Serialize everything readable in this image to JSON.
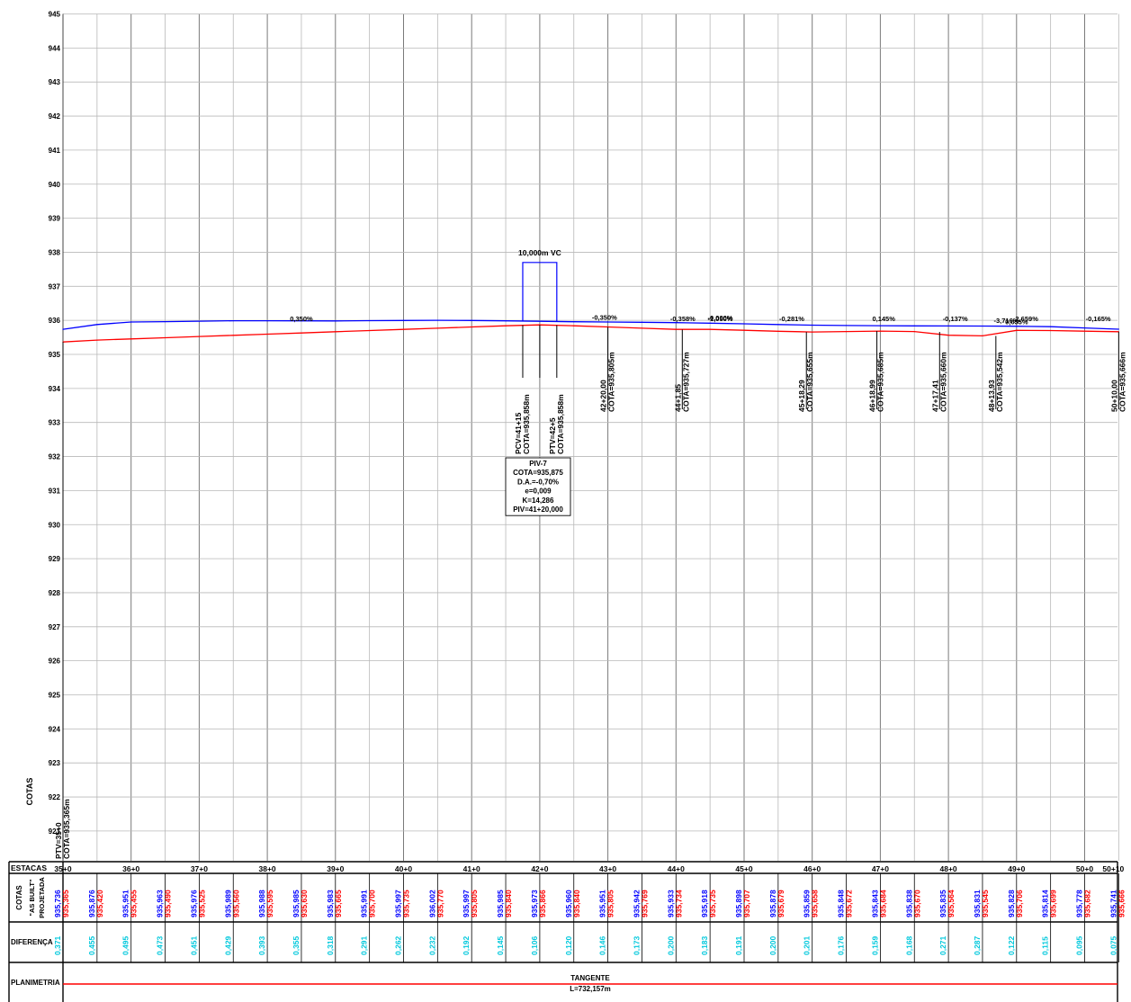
{
  "chart_data": {
    "type": "line",
    "title": "",
    "xlabel": "",
    "ylabel": "COTAS",
    "ylim": [
      920,
      945
    ],
    "yticks": [
      921,
      922,
      923,
      924,
      925,
      926,
      927,
      928,
      929,
      930,
      931,
      932,
      933,
      934,
      935,
      936,
      937,
      938,
      939,
      940,
      941,
      942,
      943,
      944,
      945
    ],
    "station_axis": {
      "start": 700,
      "end": 1010,
      "major_step": 20,
      "minor_step": 10
    },
    "grid": true,
    "colors": {
      "projected": "#0000ff",
      "as_built": "#ff0000",
      "difference": "#00c8dc",
      "planimetry": "#ff0000"
    },
    "series": [
      {
        "name": "PROJETADA",
        "color": "#0000ff",
        "x": [
          700,
          710,
          720,
          730,
          740,
          750,
          760,
          770,
          780,
          790,
          800,
          810,
          820,
          830,
          840,
          850,
          860,
          870,
          880,
          890,
          900,
          910,
          920,
          930,
          940,
          950,
          960,
          970,
          980,
          990,
          1000,
          1010
        ],
        "y": [
          935.736,
          935.876,
          935.951,
          935.963,
          935.976,
          935.989,
          935.988,
          935.985,
          935.983,
          935.991,
          935.997,
          936.002,
          935.997,
          935.985,
          935.973,
          935.96,
          935.951,
          935.942,
          935.933,
          935.918,
          935.898,
          935.878,
          935.859,
          935.848,
          935.843,
          935.838,
          935.835,
          935.831,
          935.828,
          935.814,
          935.778,
          935.741
        ]
      },
      {
        "name": "AS BUILT",
        "color": "#ff0000",
        "x": [
          700,
          710,
          720,
          730,
          740,
          750,
          760,
          770,
          780,
          790,
          800,
          810,
          820,
          830,
          840,
          850,
          860,
          870,
          880,
          890,
          900,
          910,
          920,
          930,
          940,
          950,
          960,
          970,
          980,
          990,
          1000,
          1010
        ],
        "y": [
          935.365,
          935.42,
          935.455,
          935.49,
          935.525,
          935.56,
          935.595,
          935.63,
          935.665,
          935.7,
          935.735,
          935.77,
          935.805,
          935.84,
          935.866,
          935.84,
          935.805,
          935.769,
          935.734,
          935.735,
          935.707,
          935.679,
          935.658,
          935.672,
          935.684,
          935.67,
          935.564,
          935.545,
          935.706,
          935.699,
          935.682,
          935.666
        ]
      }
    ],
    "grade_labels": [
      {
        "text": "0,350%",
        "x": 770,
        "y": 935.98
      },
      {
        "text": "-0,350%",
        "x": 859,
        "y": 936.02
      },
      {
        "text": "-0,358%",
        "x": 882,
        "y": 935.98
      },
      {
        "text": "-1,050%",
        "x": 893,
        "y": 935.98
      },
      {
        "text": "-0,000%",
        "x": 893,
        "y": 936.01
      },
      {
        "text": "-0,281%",
        "x": 914,
        "y": 935.98
      },
      {
        "text": "0,145%",
        "x": 941,
        "y": 935.98
      },
      {
        "text": "-0,137%",
        "x": 962,
        "y": 935.98
      },
      {
        "text": "-3,716%",
        "x": 977,
        "y": 935.92
      },
      {
        "text": "0,055%",
        "x": 980,
        "y": 935.88
      },
      {
        "text": "2,659%",
        "x": 983,
        "y": 935.98
      },
      {
        "text": "-0,165%",
        "x": 1004,
        "y": 935.98
      }
    ],
    "vertical_curve": {
      "length_label": "10,000m VC",
      "box_top": 937.7,
      "pcv": 835,
      "ptv": 845,
      "piv_box": [
        "PIV-7",
        "COTA=935,875",
        "D.A.=-0,70%",
        "e=0,009",
        "K=14,286",
        "PIV=41+20,000"
      ]
    },
    "station_markers": [
      {
        "x": 700,
        "station": "PTV=35+0",
        "cota": "COTA=935,365m",
        "y_top": 935.365
      },
      {
        "x": 835,
        "station": "PCV=41+15",
        "cota": "COTA=935,858m",
        "y_top": 935.858
      },
      {
        "x": 840,
        "station": "",
        "cota": "",
        "y_top": 935.866
      },
      {
        "x": 845,
        "station": "PTV=42+5",
        "cota": "COTA=935,858m",
        "y_top": 935.858
      },
      {
        "x": 860,
        "station": "42+20,00",
        "cota": "COTA=935,805m",
        "y_top": 935.805
      },
      {
        "x": 881.85,
        "station": "44+1,85",
        "cota": "COTA=935,727m",
        "y_top": 935.727
      },
      {
        "x": 918.29,
        "station": "45+18,29",
        "cota": "COTA=935,655m",
        "y_top": 935.655
      },
      {
        "x": 938.99,
        "station": "46+18,99",
        "cota": "COTA=935,685m",
        "y_top": 935.685
      },
      {
        "x": 957.41,
        "station": "47+17,41",
        "cota": "COTA=935,660m",
        "y_top": 935.66
      },
      {
        "x": 973.93,
        "station": "48+13,93",
        "cota": "COTA=935,542m",
        "y_top": 935.542
      },
      {
        "x": 1010,
        "station": "50+10,00",
        "cota": "COTA=935,666m",
        "y_top": 935.666
      }
    ],
    "table": {
      "row_labels": {
        "estacas": "ESTACAS",
        "cotas": "COTAS",
        "as_built": "\"AS BUILT\"",
        "projetada": "PROJETADA",
        "diferenca": "DIFERENÇA",
        "planimetria": "PLANIMETRIA"
      },
      "stations": [
        "35+0",
        "36+0",
        "37+0",
        "38+0",
        "39+0",
        "40+0",
        "41+0",
        "42+0",
        "43+0",
        "44+0",
        "45+0",
        "46+0",
        "47+0",
        "48+0",
        "49+0",
        "50+0",
        "50+10"
      ],
      "projected_values": [
        "935,736",
        "935,876",
        "935,951",
        "935,963",
        "935,976",
        "935,989",
        "935,988",
        "935,985",
        "935,983",
        "935,991",
        "935,997",
        "936,002",
        "935,997",
        "935,985",
        "935,973",
        "935,960",
        "935,951",
        "935,942",
        "935,933",
        "935,918",
        "935,898",
        "935,878",
        "935,859",
        "935,848",
        "935,843",
        "935,838",
        "935,835",
        "935,831",
        "935,828",
        "935,814",
        "935,778",
        "935,741"
      ],
      "as_built_values": [
        "935,365",
        "935,420",
        "935,455",
        "935,490",
        "935,525",
        "935,560",
        "935,595",
        "935,630",
        "935,665",
        "935,700",
        "935,735",
        "935,770",
        "935,805",
        "935,840",
        "935,866",
        "935,840",
        "935,805",
        "935,769",
        "935,734",
        "935,735",
        "935,707",
        "935,679",
        "935,658",
        "935,672",
        "935,684",
        "935,670",
        "935,564",
        "935,545",
        "935,706",
        "935,699",
        "935,682",
        "935,666"
      ],
      "differences": [
        "0,371",
        "0,455",
        "0,495",
        "0,473",
        "0,451",
        "0,429",
        "0,393",
        "0,355",
        "0,318",
        "0,291",
        "0,262",
        "0,232",
        "0,192",
        "0,145",
        "0,106",
        "0,120",
        "0,146",
        "0,173",
        "0,200",
        "0,183",
        "0,191",
        "0,200",
        "0,201",
        "0,176",
        "0,159",
        "0,168",
        "0,271",
        "0,287",
        "0,122",
        "0,115",
        "0,095",
        "0,075"
      ],
      "planimetry": {
        "type": "TANGENTE",
        "length": "L=732,157m"
      }
    }
  }
}
